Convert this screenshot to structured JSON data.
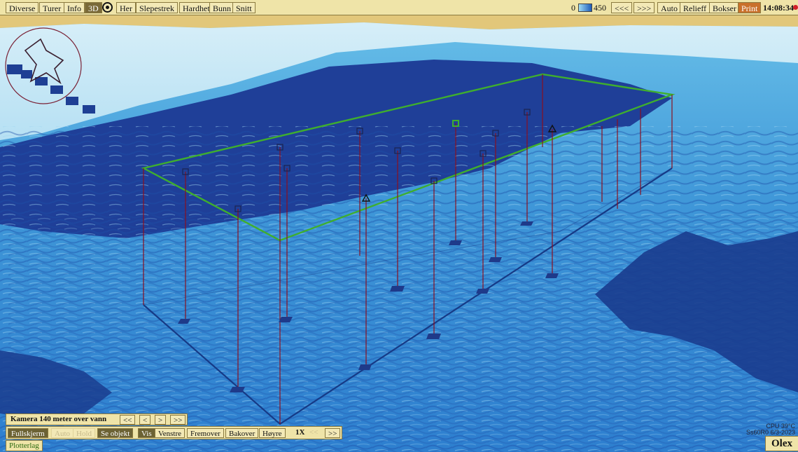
{
  "toolbar": {
    "left": [
      "Diverse",
      "Turer",
      "Info",
      "3D",
      "Her",
      "Slepestrek",
      "Hardhet",
      "Bunn",
      "Snitt"
    ],
    "depth_min": "0",
    "depth_max": "450",
    "right": [
      "<<<",
      ">>>",
      "Auto",
      "Relieff",
      "Bokser",
      "Print"
    ],
    "clock": "14:08:34"
  },
  "camera": {
    "label": "Kamera 140 meter over vann",
    "buttons": [
      "<<",
      "<",
      ">",
      ">>"
    ]
  },
  "controls": {
    "buttons": [
      "Fullskjerm",
      "Auto",
      "Hold",
      "Se objekt",
      "Vis",
      "Venstre",
      "Fremover",
      "Bakover",
      "Høyre"
    ],
    "speed": "1X",
    "speed_prev": "<<",
    "speed_next": ">>"
  },
  "bottom": {
    "plotterlag": "Plotterlag",
    "cpu": "CPU 39°C",
    "version": "Ss60R0 6/3-2023",
    "brand": "Olex"
  },
  "colors": {
    "water_shallow": "#8fd0ec",
    "water_deep": "#1b3f95",
    "land": "#e2c77a",
    "track": "#2f7f24",
    "pin": "#8a1020",
    "ui": "#efe4a8"
  }
}
